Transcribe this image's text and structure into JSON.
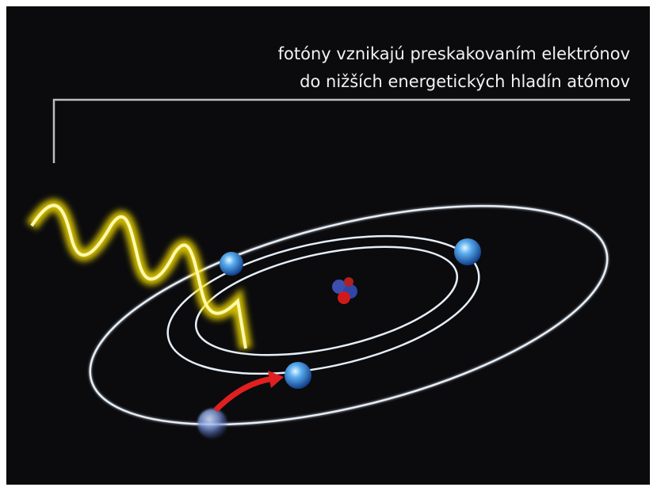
{
  "caption": {
    "lines": [
      "fotóny vznikajú preskakovaním elektrónov",
      "do nižších energetických hladín atómov"
    ]
  }
}
